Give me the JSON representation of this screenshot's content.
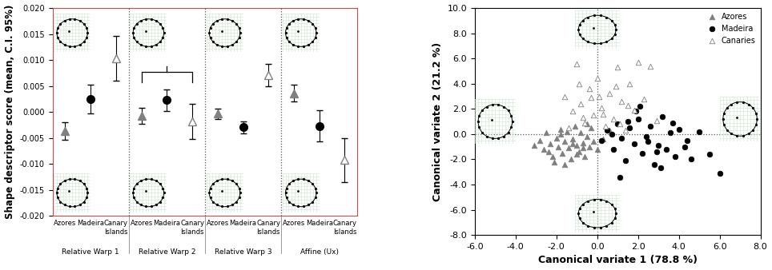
{
  "chart_data": [
    {
      "type": "errorbar",
      "ylabel": "Shape descriptor score (mean, C.I. 95%)",
      "categories": [
        "Azores",
        "Madeira",
        "Canary Islands",
        "Azores",
        "Madeira",
        "Canary Islands",
        "Azores",
        "Madeira",
        "Canary Islands",
        "Azores",
        "Madeira",
        "Canary Islands"
      ],
      "groups": [
        "Relative Warp 1",
        "Relative Warp 2",
        "Relative Warp 3",
        "Affine (Ux)"
      ],
      "series": [
        {
          "name": "Azores",
          "color": "#808080",
          "marker": "triangle",
          "values": [
            -0.0037,
            null,
            null,
            -0.0007,
            null,
            null,
            -0.0003,
            null,
            null,
            0.0035,
            null,
            null
          ],
          "ci_low": [
            -0.0053,
            null,
            null,
            -0.0022,
            null,
            null,
            -0.0013,
            null,
            null,
            0.002,
            null,
            null
          ],
          "ci_high": [
            -0.002,
            null,
            null,
            0.0008,
            null,
            null,
            0.0006,
            null,
            null,
            0.0052,
            null,
            null
          ]
        },
        {
          "name": "Madeira",
          "color": "#000000",
          "marker": "circle",
          "values": [
            null,
            0.0025,
            null,
            null,
            0.0023,
            null,
            null,
            -0.0029,
            null,
            null,
            -0.0027,
            null
          ],
          "ci_low": [
            null,
            -0.0003,
            null,
            null,
            0.0002,
            null,
            null,
            -0.0041,
            null,
            null,
            -0.0057,
            null
          ],
          "ci_high": [
            null,
            0.0053,
            null,
            null,
            0.0043,
            null,
            null,
            -0.0018,
            null,
            null,
            0.0003,
            null
          ]
        },
        {
          "name": "Canary Islands",
          "color": "#ffffff",
          "marker": "triangle",
          "values": [
            null,
            null,
            0.0104,
            null,
            null,
            -0.0018,
            null,
            null,
            0.0071,
            null,
            null,
            -0.0092
          ],
          "ci_low": [
            null,
            null,
            0.006,
            null,
            null,
            -0.0052,
            null,
            null,
            0.005,
            null,
            null,
            -0.0135
          ],
          "ci_high": [
            null,
            null,
            0.0147,
            null,
            null,
            0.0016,
            null,
            null,
            0.0092,
            null,
            null,
            -0.005
          ]
        }
      ],
      "ylim": [
        -0.02,
        0.02
      ],
      "yticks": [
        {
          "value": -0.02,
          "label": "-0.020"
        },
        {
          "value": -0.015,
          "label": "-0.015"
        },
        {
          "value": -0.01,
          "label": "-0.010"
        },
        {
          "value": -0.005,
          "label": "-0.005"
        },
        {
          "value": 0,
          "label": "0.000"
        },
        {
          "value": 0.005,
          "label": "0.005"
        },
        {
          "value": 0.01,
          "label": "0.010"
        },
        {
          "value": 0.015,
          "label": "0.015"
        },
        {
          "value": 0.02,
          "label": "0.020"
        }
      ]
    },
    {
      "type": "scatter",
      "xlabel": "Canonical variate 1 (78.8 %)",
      "ylabel": "Canonical variate 2 (21.2 %)",
      "legend": "upper right",
      "series": [
        {
          "name": "Azores",
          "color": "#808080",
          "marker": "triangle",
          "x": [
            -3.1,
            -2.8,
            -2.6,
            -2.5,
            -2.3,
            -2.2,
            -2.0,
            -1.9,
            -1.8,
            -1.7,
            -1.6,
            -1.5,
            -1.4,
            -1.3,
            -1.2,
            -1.1,
            -1.0,
            -0.9,
            -0.8,
            -0.7,
            -0.6,
            -0.5,
            -0.4,
            -0.3,
            -0.2,
            0.0,
            0.3,
            0.6,
            -2.4,
            -1.6,
            -1.0,
            -0.5,
            -1.8,
            -1.2,
            -2.1,
            -0.7
          ],
          "y": [
            -0.9,
            -0.5,
            -1.2,
            0.1,
            -0.8,
            -1.8,
            -0.3,
            -1.0,
            0.4,
            -1.5,
            -0.6,
            0.2,
            -1.1,
            -2.0,
            -0.4,
            0.6,
            -0.9,
            -1.4,
            0.1,
            -0.7,
            -1.8,
            -0.2,
            -1.0,
            0.5,
            -0.6,
            -1.2,
            -0.4,
            0.3,
            -1.4,
            -2.4,
            -1.6,
            0.8,
            0.0,
            -0.8,
            -2.2,
            -1.1
          ]
        },
        {
          "name": "Madeira",
          "color": "#000000",
          "marker": "circle",
          "x": [
            0.2,
            0.5,
            0.8,
            1.0,
            1.2,
            1.4,
            1.6,
            1.8,
            2.0,
            2.2,
            2.4,
            2.6,
            2.8,
            3.0,
            3.2,
            3.4,
            3.6,
            3.8,
            4.0,
            4.3,
            4.6,
            5.0,
            5.5,
            6.0,
            1.1,
            1.9,
            2.5,
            3.1,
            3.7,
            0.7,
            2.1,
            2.9,
            4.4,
            1.5
          ],
          "y": [
            -0.5,
            0.3,
            -1.2,
            0.8,
            -0.3,
            -2.1,
            0.5,
            -0.8,
            1.2,
            -1.5,
            -0.2,
            0.6,
            -2.4,
            -0.9,
            1.4,
            -1.2,
            0.1,
            -1.8,
            0.4,
            -1.0,
            -2.0,
            0.2,
            -1.6,
            -3.1,
            -3.4,
            1.8,
            -0.6,
            -2.7,
            0.9,
            0.0,
            2.2,
            -1.4,
            -0.5,
            1.0
          ]
        },
        {
          "name": "Canaries",
          "color": "#ffffff",
          "marker": "triangle",
          "x": [
            -1.6,
            -1.2,
            -1.0,
            -0.8,
            -0.6,
            -0.4,
            -0.2,
            0.0,
            0.2,
            0.4,
            0.6,
            0.8,
            1.0,
            1.2,
            1.4,
            1.6,
            1.8,
            2.0,
            2.3,
            2.6,
            2.9,
            -0.9,
            -0.3,
            0.3,
            0.9,
            1.5,
            -1.4,
            0.1,
            -0.7,
            1.1
          ],
          "y": [
            3.0,
            1.8,
            5.6,
            2.4,
            0.9,
            3.6,
            1.5,
            4.4,
            2.1,
            0.6,
            3.2,
            1.2,
            5.3,
            2.6,
            0.3,
            4.0,
            1.9,
            5.7,
            2.8,
            5.4,
            1.1,
            4.0,
            2.9,
            1.6,
            3.8,
            2.3,
            0.5,
            3.0,
            1.3,
            0.8
          ]
        }
      ],
      "xlim": [
        -6,
        8
      ],
      "xticks": [
        {
          "value": -6,
          "label": "-6.0"
        },
        {
          "value": -4,
          "label": "-4.0"
        },
        {
          "value": -2,
          "label": "-2.0"
        },
        {
          "value": 0,
          "label": "0.0"
        },
        {
          "value": 2,
          "label": "2.0"
        },
        {
          "value": 4,
          "label": "4.0"
        },
        {
          "value": 6,
          "label": "6.0"
        },
        {
          "value": 8,
          "label": "8.0"
        }
      ],
      "ylim": [
        -8,
        10
      ],
      "yticks": [
        {
          "value": -8,
          "label": "-8.0"
        },
        {
          "value": -6,
          "label": "-6.0"
        },
        {
          "value": -4,
          "label": "-4.0"
        },
        {
          "value": -2,
          "label": "-2.0"
        },
        {
          "value": 0,
          "label": "0.0"
        },
        {
          "value": 2,
          "label": "2.0"
        },
        {
          "value": 4,
          "label": "4.0"
        },
        {
          "value": 6,
          "label": "6.0"
        },
        {
          "value": 8,
          "label": "8.0"
        },
        {
          "value": 10,
          "label": "10.0"
        }
      ]
    }
  ]
}
